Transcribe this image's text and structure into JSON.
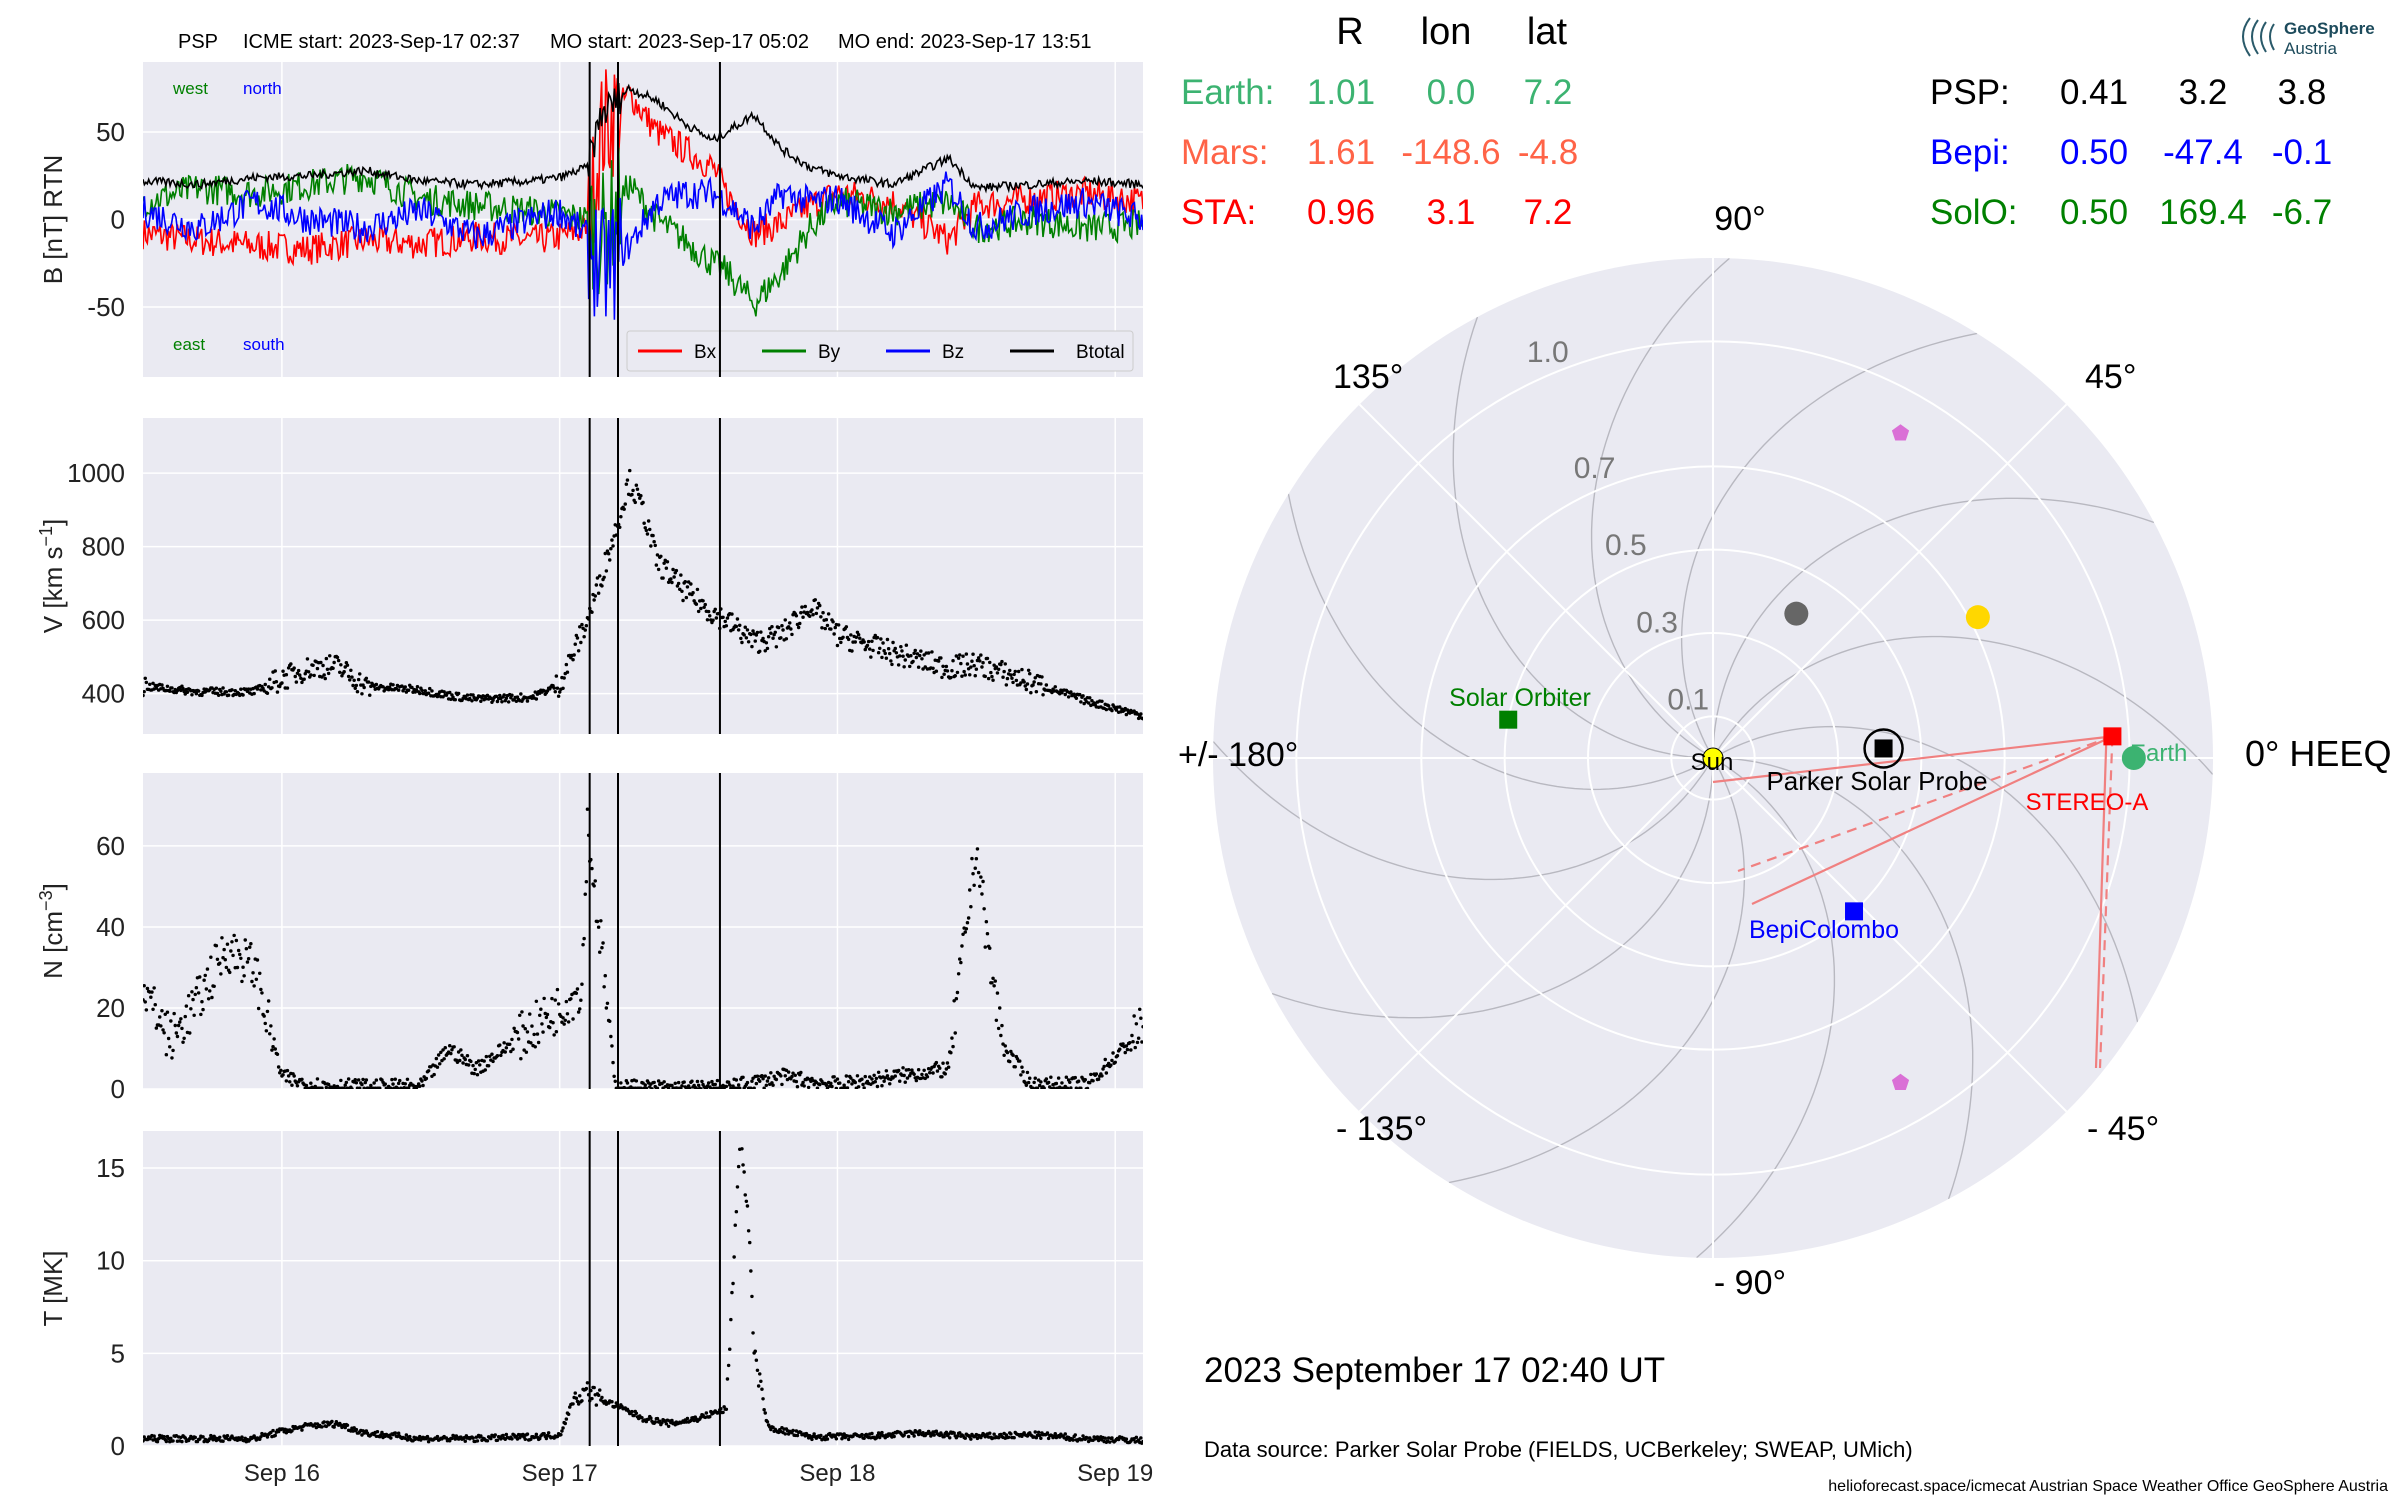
{
  "header": {
    "spacecraft": "PSP",
    "icme_start": "ICME start: 2023-Sep-17 02:37",
    "mo_start": "MO start: 2023-Sep-17 05:02",
    "mo_end": "MO end: 2023-Sep-17 13:51"
  },
  "logo": {
    "line1": "GeoSphere",
    "line2": "Austria"
  },
  "colors": {
    "bx": "#ff0000",
    "by": "#008000",
    "bz": "#0000ff",
    "btot": "#000000",
    "earth": "#3cb371",
    "mars": "#ff6347",
    "sta": "#ff0000",
    "psp": "#000000",
    "bepi": "#0000ff",
    "solo": "#008000",
    "panel_bg": "#eaeaf2",
    "grid": "#ffffff"
  },
  "chart_data": [
    {
      "type": "line",
      "panel": "magnetic-field",
      "ylabel": "B [nT] RTN",
      "ylim": [
        -90,
        90
      ],
      "yticks": [
        "50",
        "0",
        "-50"
      ],
      "ytick_values": [
        50,
        0,
        -50
      ],
      "corner_labels": {
        "west": "west",
        "north": "north",
        "east": "east",
        "south": "south"
      },
      "series": [
        {
          "name": "Bx",
          "color": "#ff0000",
          "points": [
            [
              15.5,
              -8
            ],
            [
              15.7,
              -12
            ],
            [
              15.9,
              -15
            ],
            [
              16.1,
              -17
            ],
            [
              16.3,
              -12
            ],
            [
              16.5,
              -14
            ],
            [
              16.7,
              -10
            ],
            [
              16.9,
              -12
            ],
            [
              17.0,
              -10
            ],
            [
              17.1,
              -5
            ],
            [
              17.15,
              50
            ],
            [
              17.25,
              72
            ],
            [
              17.35,
              50
            ],
            [
              17.45,
              40
            ],
            [
              17.55,
              30
            ],
            [
              17.6,
              15
            ],
            [
              17.7,
              -8
            ],
            [
              17.8,
              -2
            ],
            [
              17.9,
              8
            ],
            [
              18.0,
              15
            ],
            [
              18.2,
              10
            ],
            [
              18.4,
              -12
            ],
            [
              18.5,
              8
            ],
            [
              18.7,
              12
            ],
            [
              18.9,
              15
            ],
            [
              19.1,
              10
            ]
          ]
        },
        {
          "name": "By",
          "color": "#008000",
          "points": [
            [
              15.5,
              10
            ],
            [
              15.7,
              18
            ],
            [
              15.9,
              15
            ],
            [
              16.1,
              20
            ],
            [
              16.3,
              25
            ],
            [
              16.5,
              12
            ],
            [
              16.7,
              8
            ],
            [
              16.9,
              5
            ],
            [
              17.0,
              3
            ],
            [
              17.1,
              0
            ],
            [
              17.15,
              -10
            ],
            [
              17.25,
              20
            ],
            [
              17.35,
              0
            ],
            [
              17.45,
              -12
            ],
            [
              17.55,
              -25
            ],
            [
              17.6,
              -30
            ],
            [
              17.7,
              -48
            ],
            [
              17.8,
              -30
            ],
            [
              17.9,
              -5
            ],
            [
              18.0,
              10
            ],
            [
              18.2,
              5
            ],
            [
              18.4,
              10
            ],
            [
              18.5,
              -5
            ],
            [
              18.7,
              0
            ],
            [
              18.9,
              -5
            ],
            [
              19.1,
              -3
            ]
          ]
        },
        {
          "name": "Bz",
          "color": "#0000ff",
          "points": [
            [
              15.5,
              5
            ],
            [
              15.7,
              -5
            ],
            [
              15.9,
              10
            ],
            [
              16.1,
              0
            ],
            [
              16.3,
              -5
            ],
            [
              16.5,
              5
            ],
            [
              16.7,
              -10
            ],
            [
              16.9,
              0
            ],
            [
              17.0,
              5
            ],
            [
              17.1,
              -10
            ],
            [
              17.15,
              -30
            ],
            [
              17.25,
              -15
            ],
            [
              17.35,
              10
            ],
            [
              17.45,
              15
            ],
            [
              17.55,
              15
            ],
            [
              17.6,
              10
            ],
            [
              17.7,
              -5
            ],
            [
              17.8,
              15
            ],
            [
              17.9,
              10
            ],
            [
              18.0,
              12
            ],
            [
              18.2,
              -8
            ],
            [
              18.4,
              20
            ],
            [
              18.5,
              -5
            ],
            [
              18.7,
              5
            ],
            [
              18.9,
              10
            ],
            [
              19.1,
              0
            ]
          ]
        },
        {
          "name": "Btotal",
          "color": "#000000",
          "points": [
            [
              15.5,
              22
            ],
            [
              15.7,
              20
            ],
            [
              15.9,
              24
            ],
            [
              16.1,
              25
            ],
            [
              16.3,
              28
            ],
            [
              16.5,
              22
            ],
            [
              16.7,
              20
            ],
            [
              16.9,
              22
            ],
            [
              17.0,
              24
            ],
            [
              17.1,
              30
            ],
            [
              17.15,
              60
            ],
            [
              17.25,
              75
            ],
            [
              17.35,
              68
            ],
            [
              17.45,
              55
            ],
            [
              17.55,
              45
            ],
            [
              17.6,
              50
            ],
            [
              17.7,
              60
            ],
            [
              17.8,
              40
            ],
            [
              17.9,
              30
            ],
            [
              18.0,
              25
            ],
            [
              18.2,
              20
            ],
            [
              18.4,
              35
            ],
            [
              18.5,
              18
            ],
            [
              18.7,
              20
            ],
            [
              18.9,
              22
            ],
            [
              19.1,
              20
            ]
          ]
        }
      ],
      "legend": [
        "Bx",
        "By",
        "Bz",
        "Btotal"
      ],
      "legend_loc": "lower-right"
    },
    {
      "type": "scatter",
      "panel": "speed",
      "ylabel": "V [km s",
      "ylabel_sup": "−1",
      "ylabel_end": "]",
      "ylim": [
        290,
        1150
      ],
      "yticks": [
        "1000",
        "800",
        "600",
        "400"
      ],
      "ytick_values": [
        1000,
        800,
        600,
        400
      ],
      "points": [
        [
          15.5,
          420
        ],
        [
          15.7,
          405
        ],
        [
          15.9,
          405
        ],
        [
          16.0,
          440
        ],
        [
          16.1,
          470
        ],
        [
          16.2,
          475
        ],
        [
          16.3,
          420
        ],
        [
          16.5,
          410
        ],
        [
          16.6,
          395
        ],
        [
          16.7,
          385
        ],
        [
          16.9,
          390
        ],
        [
          17.0,
          425
        ],
        [
          17.1,
          600
        ],
        [
          17.15,
          720
        ],
        [
          17.2,
          840
        ],
        [
          17.25,
          980
        ],
        [
          17.3,
          900
        ],
        [
          17.35,
          760
        ],
        [
          17.45,
          680
        ],
        [
          17.55,
          620
        ],
        [
          17.6,
          600
        ],
        [
          17.7,
          540
        ],
        [
          17.8,
          560
        ],
        [
          17.9,
          640
        ],
        [
          18.0,
          560
        ],
        [
          18.2,
          510
        ],
        [
          18.4,
          470
        ],
        [
          18.5,
          480
        ],
        [
          18.7,
          430
        ],
        [
          18.9,
          380
        ],
        [
          19.1,
          340
        ]
      ]
    },
    {
      "type": "scatter",
      "panel": "density",
      "ylabel": "N [cm",
      "ylabel_sup": "−3",
      "ylabel_end": "]",
      "ylim": [
        0,
        78
      ],
      "yticks": [
        "60",
        "40",
        "20",
        "0"
      ],
      "ytick_values": [
        60,
        40,
        20,
        0
      ],
      "points": [
        [
          15.5,
          25
        ],
        [
          15.6,
          12
        ],
        [
          15.7,
          22
        ],
        [
          15.8,
          35
        ],
        [
          15.9,
          30
        ],
        [
          16.0,
          3
        ],
        [
          16.1,
          1
        ],
        [
          16.3,
          0.5
        ],
        [
          16.5,
          0.5
        ],
        [
          16.6,
          10
        ],
        [
          16.7,
          5
        ],
        [
          16.8,
          10
        ],
        [
          16.9,
          15
        ],
        [
          17.0,
          20
        ],
        [
          17.08,
          25
        ],
        [
          17.1,
          65
        ],
        [
          17.15,
          35
        ],
        [
          17.2,
          0.5
        ],
        [
          17.4,
          0.2
        ],
        [
          17.6,
          0.2
        ],
        [
          17.8,
          3
        ],
        [
          18.0,
          1
        ],
        [
          18.2,
          3
        ],
        [
          18.4,
          5
        ],
        [
          18.5,
          60
        ],
        [
          18.55,
          30
        ],
        [
          18.6,
          10
        ],
        [
          18.7,
          1
        ],
        [
          18.9,
          1
        ],
        [
          19.1,
          15
        ]
      ]
    },
    {
      "type": "scatter",
      "panel": "temperature",
      "ylabel": "T [MK]",
      "ylim": [
        0,
        17
      ],
      "yticks": [
        "15",
        "10",
        "5",
        "0"
      ],
      "ytick_values": [
        15,
        10,
        5,
        0
      ],
      "xticks": [
        "Sep 16",
        "Sep 17",
        "Sep 18",
        "Sep 19"
      ],
      "xtick_values": [
        16,
        17,
        18,
        19
      ],
      "xlim": [
        15.5,
        19.1
      ],
      "points": [
        [
          15.5,
          0.4
        ],
        [
          15.7,
          0.4
        ],
        [
          15.9,
          0.4
        ],
        [
          16.0,
          0.8
        ],
        [
          16.1,
          1.1
        ],
        [
          16.2,
          1.2
        ],
        [
          16.3,
          0.7
        ],
        [
          16.5,
          0.4
        ],
        [
          16.7,
          0.4
        ],
        [
          16.9,
          0.5
        ],
        [
          17.0,
          0.6
        ],
        [
          17.05,
          2.5
        ],
        [
          17.1,
          3
        ],
        [
          17.15,
          2.5
        ],
        [
          17.2,
          2.2
        ],
        [
          17.3,
          1.5
        ],
        [
          17.4,
          1.2
        ],
        [
          17.5,
          1.5
        ],
        [
          17.6,
          2
        ],
        [
          17.65,
          17
        ],
        [
          17.68,
          12
        ],
        [
          17.7,
          5
        ],
        [
          17.75,
          1
        ],
        [
          17.9,
          0.5
        ],
        [
          18.1,
          0.5
        ],
        [
          18.3,
          0.7
        ],
        [
          18.5,
          0.5
        ],
        [
          18.7,
          0.6
        ],
        [
          18.9,
          0.4
        ],
        [
          19.1,
          0.3
        ]
      ]
    }
  ],
  "event_lines": [
    17.108,
    17.21,
    17.577
  ],
  "positions": {
    "headers": {
      "r": "R",
      "lon": "lon",
      "lat": "lat"
    },
    "rows_left": [
      {
        "name": "Earth:",
        "r": "1.01",
        "lon": "0.0",
        "lat": "7.2",
        "color": "#3cb371"
      },
      {
        "name": "Mars:",
        "r": "1.61",
        "lon": "-148.6",
        "lat": "-4.8",
        "color": "#ff6347"
      },
      {
        "name": "STA:",
        "r": "0.96",
        "lon": "3.1",
        "lat": "7.2",
        "color": "#ff0000"
      }
    ],
    "rows_right": [
      {
        "name": "PSP:",
        "r": "0.41",
        "lon": "3.2",
        "lat": "3.8",
        "color": "#000000"
      },
      {
        "name": "Bepi:",
        "r": "0.50",
        "lon": "-47.4",
        "lat": "-0.1",
        "color": "#0000ff"
      },
      {
        "name": "SolO:",
        "r": "0.50",
        "lon": "169.4",
        "lat": "-6.7",
        "color": "#008000"
      }
    ]
  },
  "polar": {
    "angle_labels": {
      "a0": "0° HEEQ",
      "a45": "45°",
      "a90": "90°",
      "a135": "135°",
      "a180": "+/- 180°",
      "am135": "- 135°",
      "am90": "- 90°",
      "am45": "- 45°"
    },
    "radial_labels": [
      "0.1",
      "0.3",
      "0.5",
      "0.7",
      "1.0"
    ],
    "radial_values": [
      0.1,
      0.3,
      0.5,
      0.7,
      1.0
    ],
    "rmax": 1.2,
    "objects": [
      {
        "label": "Sun",
        "r": 0.0,
        "lon": 0.0,
        "color": "#ffff00",
        "shape": "circle"
      },
      {
        "label": "Earth",
        "r": 1.01,
        "lon": 0.0,
        "color": "#3cb371",
        "shape": "circle"
      },
      {
        "label": "STEREO-A",
        "r": 0.96,
        "lon": 3.1,
        "color": "#ff0000",
        "shape": "square"
      },
      {
        "label": "Parker Solar Probe",
        "r": 0.41,
        "lon": 3.2,
        "color": "#000000",
        "shape": "square-ring"
      },
      {
        "label": "BepiColombo",
        "r": 0.5,
        "lon": -47.4,
        "color": "#0000ff",
        "shape": "square"
      },
      {
        "label": "Solar Orbiter",
        "r": 0.5,
        "lon": 169.4,
        "color": "#008000",
        "shape": "square"
      }
    ],
    "planets_unlabeled": [
      {
        "r": 0.72,
        "lon": 28,
        "color": "#ffd700",
        "shape": "circle"
      },
      {
        "r": 0.4,
        "lon": 60,
        "color": "#666666",
        "shape": "circle"
      },
      {
        "r": 0.9,
        "lon": 60,
        "color": "#da70d6",
        "shape": "pentagon"
      },
      {
        "r": 0.9,
        "lon": -60,
        "color": "#da70d6",
        "shape": "pentagon"
      }
    ]
  },
  "footer": {
    "datetime": "2023 September 17  02:40 UT",
    "source": "Data source: Parker Solar Probe (FIELDS, UCBerkeley; SWEAP, UMich)",
    "credits": "helioforecast.space/icmecat   Austrian Space Weather Office   GeoSphere Austria"
  }
}
